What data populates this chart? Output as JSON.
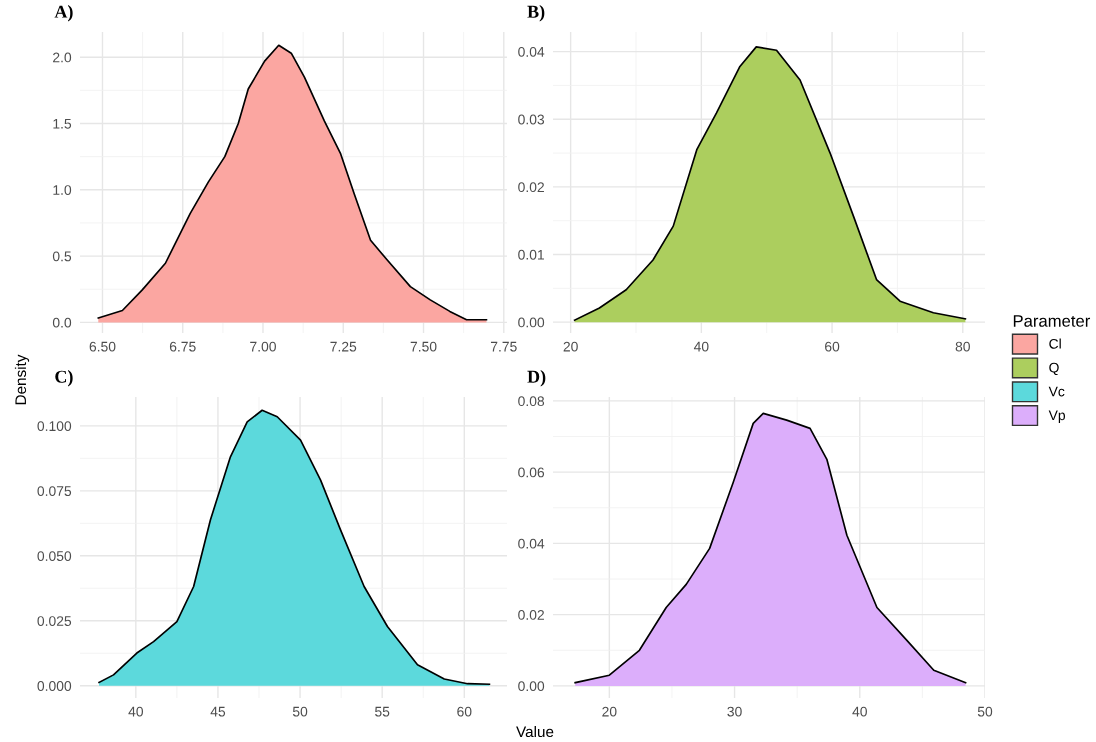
{
  "chart_data": [
    {
      "type": "area",
      "title": "A)",
      "xlim": [
        6.43,
        7.76
      ],
      "xticks": [
        {
          "value": 6.5,
          "label": "6.50"
        },
        {
          "value": 6.75,
          "label": "6.75"
        },
        {
          "value": 7.0,
          "label": "7.00"
        },
        {
          "value": 7.25,
          "label": "7.25"
        },
        {
          "value": 7.5,
          "label": "7.50"
        },
        {
          "value": 7.75,
          "label": "7.75"
        }
      ],
      "ylim": [
        -0.08,
        2.19
      ],
      "yticks": [
        {
          "value": 0,
          "label": "0.0"
        },
        {
          "value": 0.5,
          "label": "0.5"
        },
        {
          "value": 1.0,
          "label": "1.0"
        },
        {
          "value": 1.5,
          "label": "1.5"
        },
        {
          "value": 2.0,
          "label": "2.0"
        }
      ],
      "grid": true,
      "series": [
        {
          "name": "Cl",
          "color": "#fba6a1",
          "x": [
            6.487,
            6.562,
            6.624,
            6.696,
            6.773,
            6.83,
            6.881,
            6.923,
            6.954,
            7.005,
            7.049,
            7.088,
            7.129,
            7.191,
            7.242,
            7.284,
            7.335,
            7.387,
            7.459,
            7.521,
            7.582,
            7.634,
            7.696
          ],
          "values": [
            0.033,
            0.09,
            0.245,
            0.446,
            0.82,
            1.06,
            1.25,
            1.5,
            1.76,
            1.97,
            2.09,
            2.03,
            1.85,
            1.52,
            1.27,
            0.97,
            0.62,
            0.47,
            0.27,
            0.17,
            0.083,
            0.02,
            0.02
          ]
        }
      ]
    },
    {
      "type": "area",
      "title": "B)",
      "xlim": [
        17.3,
        83.4
      ],
      "xticks": [
        20,
        40,
        60,
        80
      ],
      "ylim": [
        -0.0016,
        0.0429
      ],
      "yticks": [
        {
          "value": 0,
          "label": "0.00"
        },
        0.01,
        0.02,
        0.03,
        0.04
      ],
      "grid": true,
      "legend": "right",
      "legend_title": "Parameter",
      "series": [
        {
          "name": "Q",
          "color": "#acce5e",
          "x": [
            20.6,
            24.4,
            28.5,
            32.6,
            35.7,
            39.3,
            42.3,
            45.9,
            48.4,
            51.5,
            55.1,
            59.7,
            63.3,
            66.8,
            70.4,
            75.5,
            80.4
          ],
          "values": [
            0.0003,
            0.0021,
            0.0048,
            0.0092,
            0.0142,
            0.0255,
            0.0309,
            0.0378,
            0.0407,
            0.0402,
            0.0358,
            0.025,
            0.0156,
            0.0063,
            0.0031,
            0.0014,
            0.0005
          ]
        }
      ]
    },
    {
      "type": "area",
      "title": "C)",
      "ylabel": "Density",
      "xlim": [
        36.6,
        62.6
      ],
      "xticks": [
        40,
        45,
        50,
        55,
        60
      ],
      "ylim": [
        -0.0047,
        0.1111
      ],
      "yticks": [
        {
          "value": 0,
          "label": "0.000"
        },
        {
          "value": 0.025,
          "label": "0.025"
        },
        {
          "value": 0.05,
          "label": "0.050"
        },
        {
          "value": 0.075,
          "label": "0.075"
        },
        {
          "value": 0.1,
          "label": "0.100"
        }
      ],
      "grid": true,
      "series": [
        {
          "name": "Vc",
          "color": "#5cd9dc",
          "x": [
            37.76,
            38.64,
            40.06,
            41.08,
            42.5,
            43.52,
            44.54,
            45.76,
            46.78,
            47.69,
            48.61,
            50.03,
            51.25,
            52.47,
            53.9,
            55.32,
            57.15,
            58.78,
            60.2,
            61.53
          ],
          "values": [
            0.0013,
            0.0042,
            0.0126,
            0.017,
            0.0247,
            0.0382,
            0.0638,
            0.0881,
            0.1015,
            0.106,
            0.1035,
            0.0945,
            0.0791,
            0.0599,
            0.0382,
            0.0228,
            0.0081,
            0.0026,
            0.0008,
            0.0006
          ]
        }
      ]
    },
    {
      "type": "area",
      "title": "D)",
      "xlabel": "Value",
      "xlim": [
        15.5,
        50.0
      ],
      "xticks": [
        20,
        30,
        40,
        50
      ],
      "ylim": [
        -0.0034,
        0.0811
      ],
      "yticks": [
        {
          "value": 0,
          "label": "0.00"
        },
        {
          "value": 0.02,
          "label": "0.02"
        },
        {
          "value": 0.04,
          "label": "0.04"
        },
        {
          "value": 0.06,
          "label": "0.06"
        },
        {
          "value": 0.08,
          "label": "0.08"
        }
      ],
      "grid": true,
      "series": [
        {
          "name": "Vp",
          "color": "#dcaefb",
          "x": [
            17.27,
            20.0,
            22.4,
            24.54,
            26.14,
            28.01,
            29.89,
            31.49,
            32.29,
            34.16,
            36.03,
            37.37,
            38.97,
            41.37,
            43.78,
            45.91,
            48.45
          ],
          "values": [
            0.0009,
            0.003,
            0.01,
            0.022,
            0.0285,
            0.0386,
            0.0571,
            0.0737,
            0.0765,
            0.0746,
            0.0723,
            0.0636,
            0.0423,
            0.022,
            0.0127,
            0.0044,
            0.0009
          ]
        }
      ]
    }
  ]
}
